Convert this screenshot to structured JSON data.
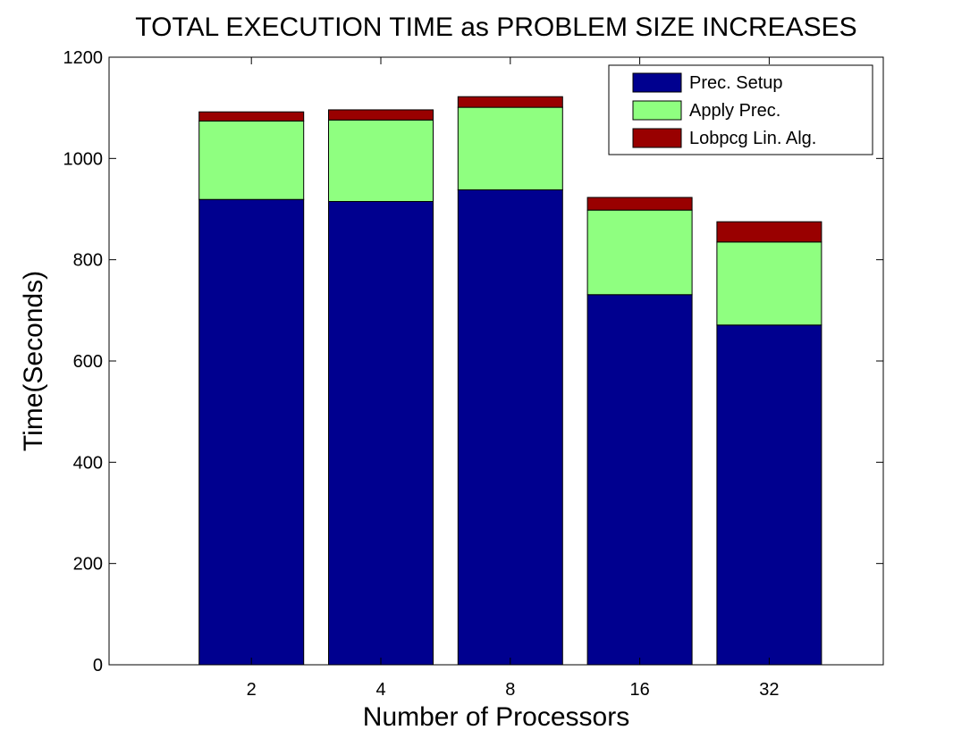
{
  "chart_data": {
    "type": "bar",
    "stacked": true,
    "title": "TOTAL EXECUTION TIME as PROBLEM SIZE INCREASES",
    "xlabel": "Number of Processors",
    "ylabel": "Time(Seconds)",
    "categories": [
      "2",
      "4",
      "8",
      "16",
      "32"
    ],
    "ylim": [
      0,
      1200
    ],
    "yticks": [
      0,
      200,
      400,
      600,
      800,
      1000,
      1200
    ],
    "grid": false,
    "legend_position": "top-right",
    "series": [
      {
        "name": "Prec. Setup",
        "color": "#00008f",
        "values": [
          919,
          915,
          938,
          731,
          671
        ]
      },
      {
        "name": "Apply Prec.",
        "color": "#8fff80",
        "values": [
          155,
          161,
          163,
          167,
          164
        ]
      },
      {
        "name": "Lobpcg Lin. Alg.",
        "color": "#990000",
        "values": [
          18,
          20,
          21,
          25,
          40
        ]
      }
    ]
  }
}
